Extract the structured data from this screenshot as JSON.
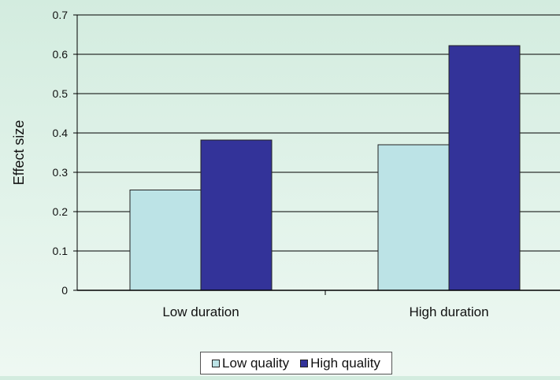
{
  "chart_data": {
    "type": "bar",
    "categories": [
      "Low duration",
      "High duration"
    ],
    "series": [
      {
        "name": "Low quality",
        "values": [
          0.255,
          0.37
        ],
        "color": "#bce3e6"
      },
      {
        "name": "High quality",
        "values": [
          0.382,
          0.622
        ],
        "color": "#333399"
      }
    ],
    "ylabel": "Effect size",
    "xlabel": "",
    "ylim": [
      0,
      0.7
    ],
    "yticks": [
      "0",
      "0.1",
      "0.2",
      "0.3",
      "0.4",
      "0.5",
      "0.6",
      "0.7"
    ],
    "grid": true,
    "legend_position": "bottom"
  }
}
